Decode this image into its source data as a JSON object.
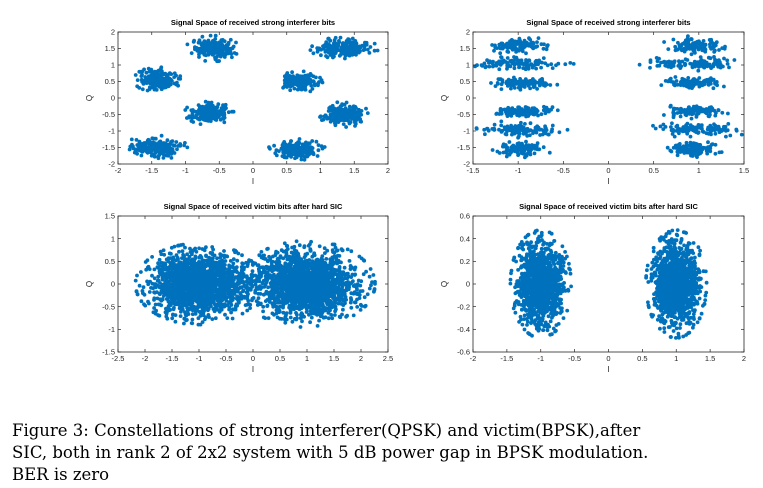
{
  "chart_data": [
    {
      "type": "scatter",
      "title": "Signal Space of received strong interferer bits",
      "xlabel": "I",
      "ylabel": "Q",
      "xlim": [
        -2,
        2
      ],
      "ylim": [
        -2,
        2
      ],
      "xticks": [
        -2,
        -1.5,
        -1,
        -0.5,
        0,
        0.5,
        1,
        1.5,
        2
      ],
      "yticks": [
        -2,
        -1.5,
        -1,
        -0.5,
        0,
        0.5,
        1,
        1.5,
        2
      ],
      "grid": false,
      "marker_color": "#0072BD",
      "clusters": [
        {
          "center": [
            -0.6,
            1.5
          ],
          "spread": [
            0.14,
            0.14
          ]
        },
        {
          "center": [
            1.35,
            1.5
          ],
          "spread": [
            0.18,
            0.12
          ]
        },
        {
          "center": [
            -1.4,
            0.55
          ],
          "spread": [
            0.13,
            0.14
          ]
        },
        {
          "center": [
            0.7,
            0.5
          ],
          "spread": [
            0.13,
            0.12
          ]
        },
        {
          "center": [
            -0.65,
            -0.45
          ],
          "spread": [
            0.13,
            0.13
          ]
        },
        {
          "center": [
            1.35,
            -0.5
          ],
          "spread": [
            0.13,
            0.14
          ]
        },
        {
          "center": [
            -1.45,
            -1.5
          ],
          "spread": [
            0.17,
            0.13
          ]
        },
        {
          "center": [
            0.65,
            -1.55
          ],
          "spread": [
            0.15,
            0.12
          ]
        }
      ]
    },
    {
      "type": "scatter",
      "title": "Signal Space of received strong interferer bits",
      "xlabel": "I",
      "ylabel": "Q",
      "xlim": [
        -1.5,
        1.5
      ],
      "ylim": [
        -2,
        2
      ],
      "xticks": [
        -1.5,
        -1,
        -0.5,
        0,
        0.5,
        1,
        1.5
      ],
      "yticks": [
        -2,
        -1.5,
        -1,
        -0.5,
        0,
        0.5,
        1,
        1.5,
        2
      ],
      "grid": false,
      "marker_color": "#0072BD",
      "clusters": [
        {
          "center": [
            -1.0,
            1.6
          ],
          "spread": [
            0.14,
            0.1
          ]
        },
        {
          "center": [
            -1.0,
            1.05
          ],
          "spread": [
            0.22,
            0.08
          ]
        },
        {
          "center": [
            -0.95,
            0.45
          ],
          "spread": [
            0.14,
            0.08
          ]
        },
        {
          "center": [
            -0.95,
            -0.4
          ],
          "spread": [
            0.14,
            0.08
          ]
        },
        {
          "center": [
            -1.0,
            -0.95
          ],
          "spread": [
            0.22,
            0.09
          ]
        },
        {
          "center": [
            -0.95,
            -1.55
          ],
          "spread": [
            0.14,
            0.1
          ]
        },
        {
          "center": [
            0.95,
            1.6
          ],
          "spread": [
            0.14,
            0.1
          ]
        },
        {
          "center": [
            0.95,
            1.05
          ],
          "spread": [
            0.22,
            0.08
          ]
        },
        {
          "center": [
            0.95,
            0.45
          ],
          "spread": [
            0.14,
            0.08
          ]
        },
        {
          "center": [
            0.95,
            -0.4
          ],
          "spread": [
            0.14,
            0.08
          ]
        },
        {
          "center": [
            1.0,
            -0.95
          ],
          "spread": [
            0.22,
            0.09
          ]
        },
        {
          "center": [
            0.95,
            -1.55
          ],
          "spread": [
            0.14,
            0.1
          ]
        }
      ]
    },
    {
      "type": "scatter",
      "title": "Signal Space of received victim bits after hard SIC",
      "xlabel": "I",
      "ylabel": "Q",
      "xlim": [
        -2.5,
        2.5
      ],
      "ylim": [
        -1.5,
        1.5
      ],
      "xticks": [
        -2.5,
        -2,
        -1.5,
        -1,
        -0.5,
        0,
        0.5,
        1,
        1.5,
        2,
        2.5
      ],
      "yticks": [
        -1.5,
        -1,
        -0.5,
        0,
        0.5,
        1,
        1.5
      ],
      "grid": false,
      "marker_color": "#0072BD",
      "clusters": [
        {
          "center": [
            -1.0,
            0.0
          ],
          "spread": [
            0.42,
            0.32
          ]
        },
        {
          "center": [
            1.0,
            0.0
          ],
          "spread": [
            0.45,
            0.34
          ]
        }
      ]
    },
    {
      "type": "scatter",
      "title": "Signal Space of received victim bits after hard SIC",
      "xlabel": "I",
      "ylabel": "Q",
      "xlim": [
        -2,
        2
      ],
      "ylim": [
        -0.6,
        0.6
      ],
      "xticks": [
        -2,
        -1.5,
        -1,
        -0.5,
        0,
        0.5,
        1,
        1.5,
        2
      ],
      "yticks": [
        -0.6,
        -0.4,
        -0.2,
        0,
        0.2,
        0.4,
        0.6
      ],
      "grid": false,
      "marker_color": "#0072BD",
      "clusters": [
        {
          "center": [
            -1.0,
            0.0
          ],
          "spread": [
            0.16,
            0.17
          ]
        },
        {
          "center": [
            1.0,
            0.0
          ],
          "spread": [
            0.16,
            0.17
          ]
        }
      ]
    }
  ],
  "caption": {
    "lines": [
      "Figure 3:  Constellations of strong interferer(QPSK) and victim(BPSK),after",
      "SIC, both in rank 2 of 2x2 system with 5 dB power gap in BPSK modulation.",
      "BER is zero"
    ]
  }
}
